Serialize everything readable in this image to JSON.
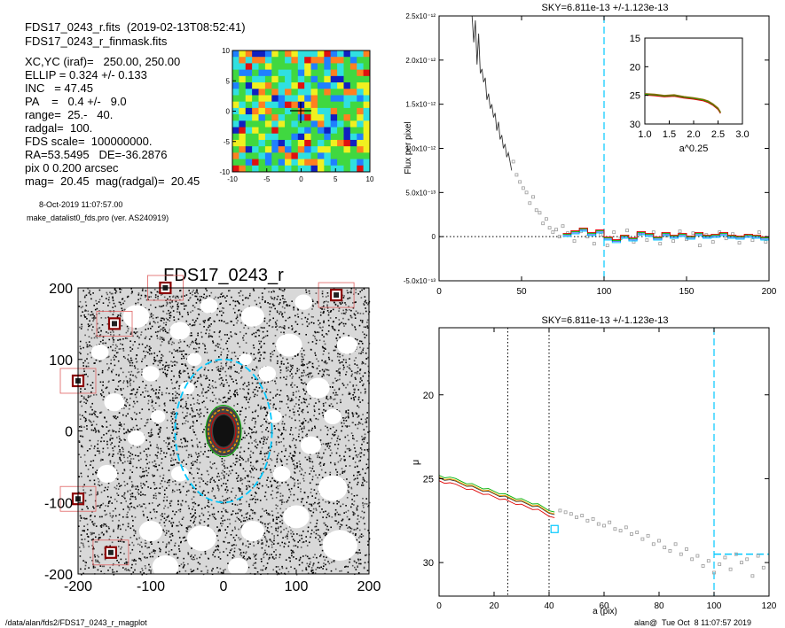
{
  "header": {
    "file_line": "FDS17_0243_r.fits  (2019-02-13T08:52:41)",
    "mask_line": "FDS17_0243_r_finmask.fits",
    "params": [
      "XC,YC (iraf)=   250.00, 250.00",
      "ELLIP = 0.324 +/- 0.133",
      "INC   = 47.45",
      "PA    =   0.4 +/-   9.0",
      "range=  25.-   40.",
      "radgal=  100.",
      "FDS scale=  100000000.",
      "RA=53.5495   DE=-36.2876",
      "pix 0 0.200 arcsec",
      "mag=  20.45  mag(radgal)=  20.45"
    ],
    "date_line": "8-Oct-2019 11:07:57.00",
    "program_line": "make_datalist0_fds.pro (ver. AS240919)"
  },
  "footer": {
    "left": "/data/alan/fds2/FDS17_0243_r_magplot",
    "right": "alan@  Tue Oct  8 11:07:57 2019"
  },
  "colors": {
    "cyan": "#00c8ff",
    "red": "#e00000",
    "green": "#00b000",
    "orange": "#ffa000",
    "grey": "#9a9a9a"
  },
  "chart_data": [
    {
      "id": "residual_map",
      "type": "heatmap",
      "xlim": [
        -10,
        10
      ],
      "ylim": [
        -10,
        10
      ],
      "xticks": [
        "-10",
        "-5",
        "0",
        "5",
        "10"
      ],
      "yticks": [
        "-10",
        "-5",
        "0",
        "5",
        "10"
      ],
      "colormap": [
        "#1020c0",
        "#2080ff",
        "#30e0e0",
        "#40d840",
        "#f0f020",
        "#ff8020",
        "#e01010"
      ]
    },
    {
      "id": "galaxy_image",
      "type": "heatmap",
      "title": "FDS17_0243_r",
      "xlim": [
        -200,
        200
      ],
      "ylim": [
        -200,
        200
      ],
      "xticks": [
        "-200",
        "-100",
        "0",
        "100",
        "200"
      ],
      "yticks": [
        "-200",
        "-100",
        "0",
        "100",
        "200"
      ],
      "ellipse_center": [
        0,
        0
      ],
      "outer_ellipse": {
        "a": 100,
        "ellip": 0.324,
        "pa": 0.4
      },
      "boxes": [
        [
          -150,
          150
        ],
        [
          -200,
          70
        ],
        [
          -200,
          -95
        ],
        [
          -155,
          -170
        ],
        [
          155,
          190
        ],
        [
          -80,
          200
        ]
      ]
    },
    {
      "id": "sky_profile",
      "type": "line",
      "title": "SKY=6.811e-13 +/-1.123e-13",
      "xlabel": "",
      "ylabel": "Flux per pixel",
      "xlim": [
        0,
        200
      ],
      "ylim": [
        -5e-13,
        2.5e-12
      ],
      "xticks": [
        "0",
        "50",
        "100",
        "150",
        "200"
      ],
      "yticks": [
        "-5.0x10⁻¹³",
        "0",
        "5.0x10⁻¹³",
        "1.0x10⁻¹²",
        "1.5x10⁻¹²",
        "2.0x10⁻¹²",
        "2.5x10⁻¹²"
      ],
      "ytick_values": [
        -5e-13,
        0,
        5e-13,
        1e-12,
        1.5e-12,
        2e-12,
        2.5e-12
      ],
      "sky_radius": 100,
      "series": [
        {
          "values": [
            [
              20,
              2.5e-12
            ],
            [
              21,
              2.2e-12
            ],
            [
              22,
              2.45e-12
            ],
            [
              23,
              1.95e-12
            ],
            [
              24,
              2.3e-12
            ],
            [
              25,
              1.85e-12
            ],
            [
              26,
              1.9e-12
            ],
            [
              27,
              1.75e-12
            ],
            [
              28,
              1.8e-12
            ],
            [
              29,
              1.55e-12
            ],
            [
              30,
              1.62e-12
            ],
            [
              31,
              1.45e-12
            ],
            [
              32,
              1.5e-12
            ],
            [
              33,
              1.35e-12
            ],
            [
              34,
              1.4e-12
            ],
            [
              35,
              1.2e-12
            ],
            [
              36,
              1.3e-12
            ],
            [
              37,
              1.1e-12
            ],
            [
              38,
              1.15e-12
            ],
            [
              39,
              1e-12
            ],
            [
              40,
              1.05e-12
            ],
            [
              41,
              9e-13
            ],
            [
              42,
              9.5e-13
            ],
            [
              43,
              8.5e-13
            ],
            [
              44,
              7.5e-13
            ]
          ]
        },
        {
          "values": [
            [
              75,
              2e-14
            ],
            [
              80,
              5e-14
            ],
            [
              85,
              8e-14
            ],
            [
              90,
              3e-14
            ],
            [
              95,
              6e-14
            ],
            [
              100,
              -2e-14
            ],
            [
              105,
              -5e-14
            ],
            [
              110,
              0.0
            ],
            [
              115,
              -3e-14
            ],
            [
              120,
              4e-14
            ],
            [
              125,
              2e-14
            ],
            [
              130,
              -2e-14
            ],
            [
              135,
              3e-14
            ],
            [
              140,
              0.0
            ],
            [
              145,
              2e-14
            ],
            [
              150,
              -1e-14
            ],
            [
              155,
              3e-14
            ],
            [
              160,
              0.0
            ],
            [
              165,
              1e-14
            ],
            [
              170,
              3e-14
            ],
            [
              175,
              0.0
            ],
            [
              180,
              -1e-14
            ],
            [
              185,
              1e-14
            ],
            [
              190,
              0.0
            ],
            [
              195,
              -2e-14
            ],
            [
              200,
              -3e-14
            ]
          ]
        }
      ],
      "points": [
        [
          45,
          8.5e-13
        ],
        [
          47,
          7e-13
        ],
        [
          49,
          6.2e-13
        ],
        [
          51,
          5.5e-13
        ],
        [
          53,
          5e-13
        ],
        [
          55,
          3.8e-13
        ],
        [
          57,
          4.5e-13
        ],
        [
          59,
          3e-13
        ],
        [
          61,
          2.7e-13
        ],
        [
          63,
          1.5e-13
        ],
        [
          65,
          2e-13
        ],
        [
          67,
          1e-13
        ],
        [
          69,
          5e-14
        ],
        [
          71,
          8e-14
        ],
        [
          73,
          0.0
        ],
        [
          75,
          1.2e-13
        ],
        [
          78,
          4e-14
        ],
        [
          82,
          -5e-14
        ],
        [
          86,
          6e-14
        ],
        [
          90,
          0.0
        ],
        [
          94,
          -8e-14
        ],
        [
          98,
          2e-14
        ],
        [
          102,
          -1e-13
        ],
        [
          106,
          5e-14
        ],
        [
          110,
          -2e-14
        ],
        [
          114,
          7e-14
        ],
        [
          118,
          -6e-14
        ],
        [
          122,
          3e-14
        ],
        [
          126,
          -4e-14
        ],
        [
          130,
          5e-14
        ],
        [
          134,
          -8e-14
        ],
        [
          138,
          1e-14
        ],
        [
          142,
          -5e-14
        ],
        [
          146,
          6e-14
        ],
        [
          150,
          -3e-14
        ],
        [
          154,
          4e-14
        ],
        [
          158,
          -1e-13
        ],
        [
          162,
          2e-14
        ],
        [
          166,
          -6e-14
        ],
        [
          170,
          5e-14
        ],
        [
          174,
          -2e-14
        ],
        [
          178,
          3e-14
        ],
        [
          182,
          -7e-14
        ],
        [
          186,
          1e-14
        ],
        [
          190,
          -4e-14
        ],
        [
          194,
          5e-14
        ],
        [
          198,
          -6e-14
        ]
      ]
    },
    {
      "id": "inset_profile",
      "type": "line",
      "xlabel": "a^0.25",
      "xlim": [
        1.0,
        3.0
      ],
      "ylim": [
        30,
        15
      ],
      "xticks": [
        "1.0",
        "1.5",
        "2.0",
        "2.5",
        "3.0"
      ],
      "yticks": [
        "15",
        "20",
        "25",
        "30"
      ],
      "series": [
        {
          "values": [
            [
              1.0,
              24.8
            ],
            [
              1.2,
              24.9
            ],
            [
              1.4,
              25.1
            ],
            [
              1.6,
              25.0
            ],
            [
              1.8,
              25.3
            ],
            [
              2.0,
              25.5
            ],
            [
              2.2,
              25.8
            ],
            [
              2.3,
              26.1
            ],
            [
              2.4,
              26.6
            ],
            [
              2.5,
              27.3
            ],
            [
              2.55,
              28.0
            ]
          ]
        }
      ]
    },
    {
      "id": "surface_brightness",
      "type": "scatter",
      "title": "SKY=6.811e-13 +/-1.123e-13",
      "xlabel": "a (pix)",
      "ylabel": "μ",
      "xlim": [
        0,
        120
      ],
      "ylim": [
        32,
        16
      ],
      "xticks": [
        "0",
        "20",
        "40",
        "60",
        "80",
        "100",
        "120"
      ],
      "yticks": [
        "20",
        "25",
        "30"
      ],
      "range_lines": [
        25,
        40
      ],
      "sky_radius": 100,
      "sky_level": 29.5,
      "series": [
        {
          "values": [
            [
              0,
              25.0
            ],
            [
              2,
              25.1
            ],
            [
              4,
              25.0
            ],
            [
              6,
              25.2
            ],
            [
              8,
              25.3
            ],
            [
              10,
              25.4
            ],
            [
              12,
              25.5
            ],
            [
              14,
              25.6
            ],
            [
              16,
              25.7
            ],
            [
              18,
              25.8
            ],
            [
              20,
              25.9
            ],
            [
              22,
              26.0
            ],
            [
              24,
              26.1
            ],
            [
              26,
              26.2
            ],
            [
              28,
              26.3
            ],
            [
              30,
              26.4
            ],
            [
              32,
              26.5
            ],
            [
              34,
              26.6
            ],
            [
              36,
              26.7
            ],
            [
              38,
              26.85
            ],
            [
              40,
              27.0
            ],
            [
              42,
              27.2
            ]
          ]
        }
      ],
      "points": [
        [
          44,
          26.9
        ],
        [
          46,
          27.0
        ],
        [
          48,
          27.1
        ],
        [
          50,
          27.3
        ],
        [
          52,
          27.2
        ],
        [
          54,
          27.5
        ],
        [
          56,
          27.4
        ],
        [
          58,
          27.7
        ],
        [
          60,
          27.8
        ],
        [
          62,
          27.6
        ],
        [
          64,
          28.0
        ],
        [
          66,
          28.1
        ],
        [
          68,
          27.9
        ],
        [
          70,
          28.3
        ],
        [
          72,
          28.2
        ],
        [
          74,
          28.6
        ],
        [
          76,
          28.4
        ],
        [
          78,
          28.9
        ],
        [
          80,
          28.7
        ],
        [
          82,
          29.1
        ],
        [
          84,
          29.3
        ],
        [
          86,
          28.9
        ],
        [
          88,
          29.5
        ],
        [
          90,
          29.2
        ],
        [
          92,
          29.8
        ],
        [
          94,
          29.6
        ],
        [
          96,
          30.2
        ],
        [
          98,
          29.9
        ],
        [
          100,
          30.6
        ],
        [
          102,
          30.1
        ],
        [
          104,
          29.7
        ],
        [
          106,
          30.4
        ],
        [
          108,
          29.5
        ],
        [
          110,
          30.0
        ],
        [
          112,
          29.8
        ],
        [
          114,
          30.8
        ],
        [
          116,
          29.6
        ],
        [
          118,
          30.3
        ]
      ],
      "marker": [
        42,
        28.0
      ]
    }
  ]
}
